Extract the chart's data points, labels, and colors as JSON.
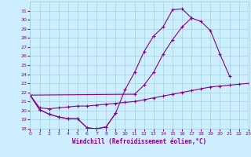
{
  "xlabel": "Windchill (Refroidissement éolien,°C)",
  "xlim": [
    0,
    23
  ],
  "ylim": [
    18,
    32
  ],
  "yticks": [
    18,
    19,
    20,
    21,
    22,
    23,
    24,
    25,
    26,
    27,
    28,
    29,
    30,
    31
  ],
  "xticks": [
    0,
    1,
    2,
    3,
    4,
    5,
    6,
    7,
    8,
    9,
    10,
    11,
    12,
    13,
    14,
    15,
    16,
    17,
    18,
    19,
    20,
    21,
    22,
    23
  ],
  "bg_color": "#cceeff",
  "line_color": "#880088",
  "grid_color": "#99cccc",
  "lines": [
    {
      "x": [
        0,
        1,
        2,
        3,
        4,
        5,
        6,
        7,
        8,
        9
      ],
      "y": [
        21.7,
        20.1,
        19.6,
        19.3,
        19.1,
        19.1,
        18.1,
        18.0,
        18.2,
        19.7
      ]
    },
    {
      "x": [
        0,
        1,
        2,
        3,
        4,
        5,
        6,
        7,
        8,
        9,
        10,
        11,
        12,
        13,
        14,
        15,
        16,
        17
      ],
      "y": [
        21.7,
        20.1,
        19.6,
        19.3,
        19.1,
        19.1,
        18.1,
        18.0,
        18.2,
        19.7,
        22.3,
        24.2,
        26.5,
        28.2,
        29.2,
        31.1,
        31.2,
        30.2
      ]
    },
    {
      "x": [
        0,
        11,
        12,
        13,
        14,
        15,
        16,
        17,
        18,
        19,
        20,
        21
      ],
      "y": [
        21.7,
        21.8,
        22.8,
        24.2,
        26.2,
        27.8,
        29.2,
        30.2,
        29.8,
        28.8,
        26.2,
        23.8
      ]
    },
    {
      "x": [
        0,
        1,
        2,
        3,
        4,
        5,
        6,
        7,
        8,
        9,
        10,
        11,
        12,
        13,
        14,
        15,
        16,
        17,
        18,
        19,
        20,
        21,
        22,
        23
      ],
      "y": [
        21.7,
        20.3,
        20.2,
        20.3,
        20.4,
        20.5,
        20.5,
        20.6,
        20.7,
        20.8,
        20.9,
        21.0,
        21.2,
        21.4,
        21.6,
        21.8,
        22.0,
        22.2,
        22.4,
        22.6,
        22.7,
        22.8,
        22.9,
        23.0
      ]
    }
  ]
}
